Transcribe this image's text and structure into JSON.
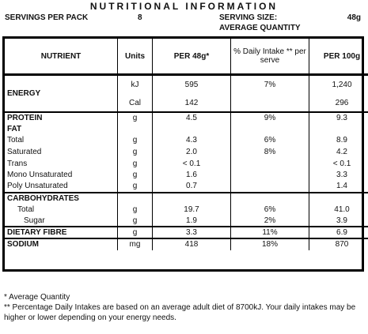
{
  "title": "NUTRITIONAL INFORMATION",
  "servings_label": "SERVINGS PER PACK",
  "servings_value": "8",
  "serving_size_label": "SERVING SIZE:",
  "serving_size_value": "48g",
  "average_quantity": "AVERAGE QUANTITY",
  "headers": {
    "nutrient": "NUTRIENT",
    "units": "Units",
    "per_serve": "PER 48g*",
    "daily_intake": "% Daily Intake ** per serve",
    "per_100g": "PER 100g"
  },
  "energy": {
    "label": "ENERGY",
    "kj": {
      "unit": "kJ",
      "per_serve": "595",
      "daily": "7%",
      "per_100g": "1,240"
    },
    "cal": {
      "unit": "Cal",
      "per_serve": "142",
      "daily": "",
      "per_100g": "296"
    }
  },
  "protein": {
    "label": "PROTEIN",
    "unit": "g",
    "per_serve": "4.5",
    "daily": "9%",
    "per_100g": "9.3"
  },
  "fat": {
    "label": "FAT",
    "rows": [
      {
        "label": "Total",
        "unit": "g",
        "per_serve": "4.3",
        "daily": "6%",
        "per_100g": "8.9"
      },
      {
        "label": "Saturated",
        "unit": "g",
        "per_serve": "2.0",
        "daily": "8%",
        "per_100g": "4.2"
      },
      {
        "label": "Trans",
        "unit": "g",
        "per_serve": "< 0.1",
        "daily": "",
        "per_100g": "< 0.1"
      },
      {
        "label": "Mono Unsaturated",
        "unit": "g",
        "per_serve": "1.6",
        "daily": "",
        "per_100g": "3.3"
      },
      {
        "label": "Poly Unsaturated",
        "unit": "g",
        "per_serve": "0.7",
        "daily": "",
        "per_100g": "1.4"
      }
    ]
  },
  "carbohydrates": {
    "label": "CARBOHYDRATES",
    "rows": [
      {
        "label": "Total",
        "unit": "g",
        "per_serve": "19.7",
        "daily": "6%",
        "per_100g": "41.0"
      },
      {
        "label": "Sugar",
        "unit": "g",
        "per_serve": "1.9",
        "daily": "2%",
        "per_100g": "3.9"
      }
    ]
  },
  "dietary_fibre": {
    "label": "DIETARY FIBRE",
    "unit": "g",
    "per_serve": "3.3",
    "daily": "11%",
    "per_100g": "6.9"
  },
  "sodium": {
    "label": "SODIUM",
    "unit": "mg",
    "per_serve": "418",
    "daily": "18%",
    "per_100g": "870"
  },
  "footnotes": [
    "* Average Quantity",
    "** Percentage Daily Intakes are based on an average adult diet of 8700kJ. Your daily intakes may be higher or lower depending on your energy needs."
  ]
}
